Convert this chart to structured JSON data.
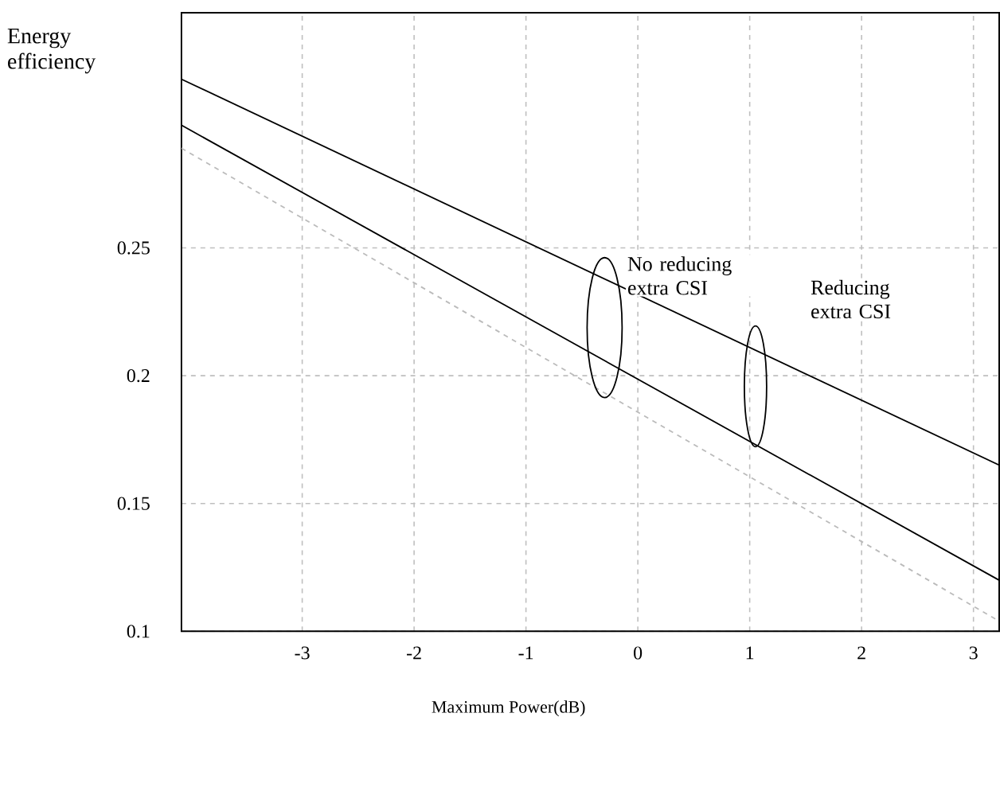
{
  "chart_data": {
    "type": "line",
    "xlabel": "Maximum Power(dB)",
    "ylabel": "Energy efficiency",
    "x": [
      -4.08,
      3.23
    ],
    "series": [
      {
        "color": "#000000",
        "values": [
          0.316,
          0.165
        ],
        "line_style": "solid"
      },
      {
        "color": "#000000",
        "values": [
          0.298,
          0.12
        ],
        "line_style": "solid"
      },
      {
        "color": "#bbbbbb",
        "values": [
          0.289,
          0.104
        ],
        "line_style": "dashed"
      }
    ],
    "xlim": [
      -4.08,
      3.23
    ],
    "ylim": [
      0.1,
      0.342
    ],
    "xticks": [
      -3,
      -2,
      -1,
      0,
      1,
      2,
      3
    ],
    "yticks": [
      0.1,
      0.15,
      0.2,
      0.25
    ],
    "grid": true,
    "marker": "none",
    "annotations": [
      "No reducing extra CSI",
      "Reducing extra CSI"
    ]
  }
}
